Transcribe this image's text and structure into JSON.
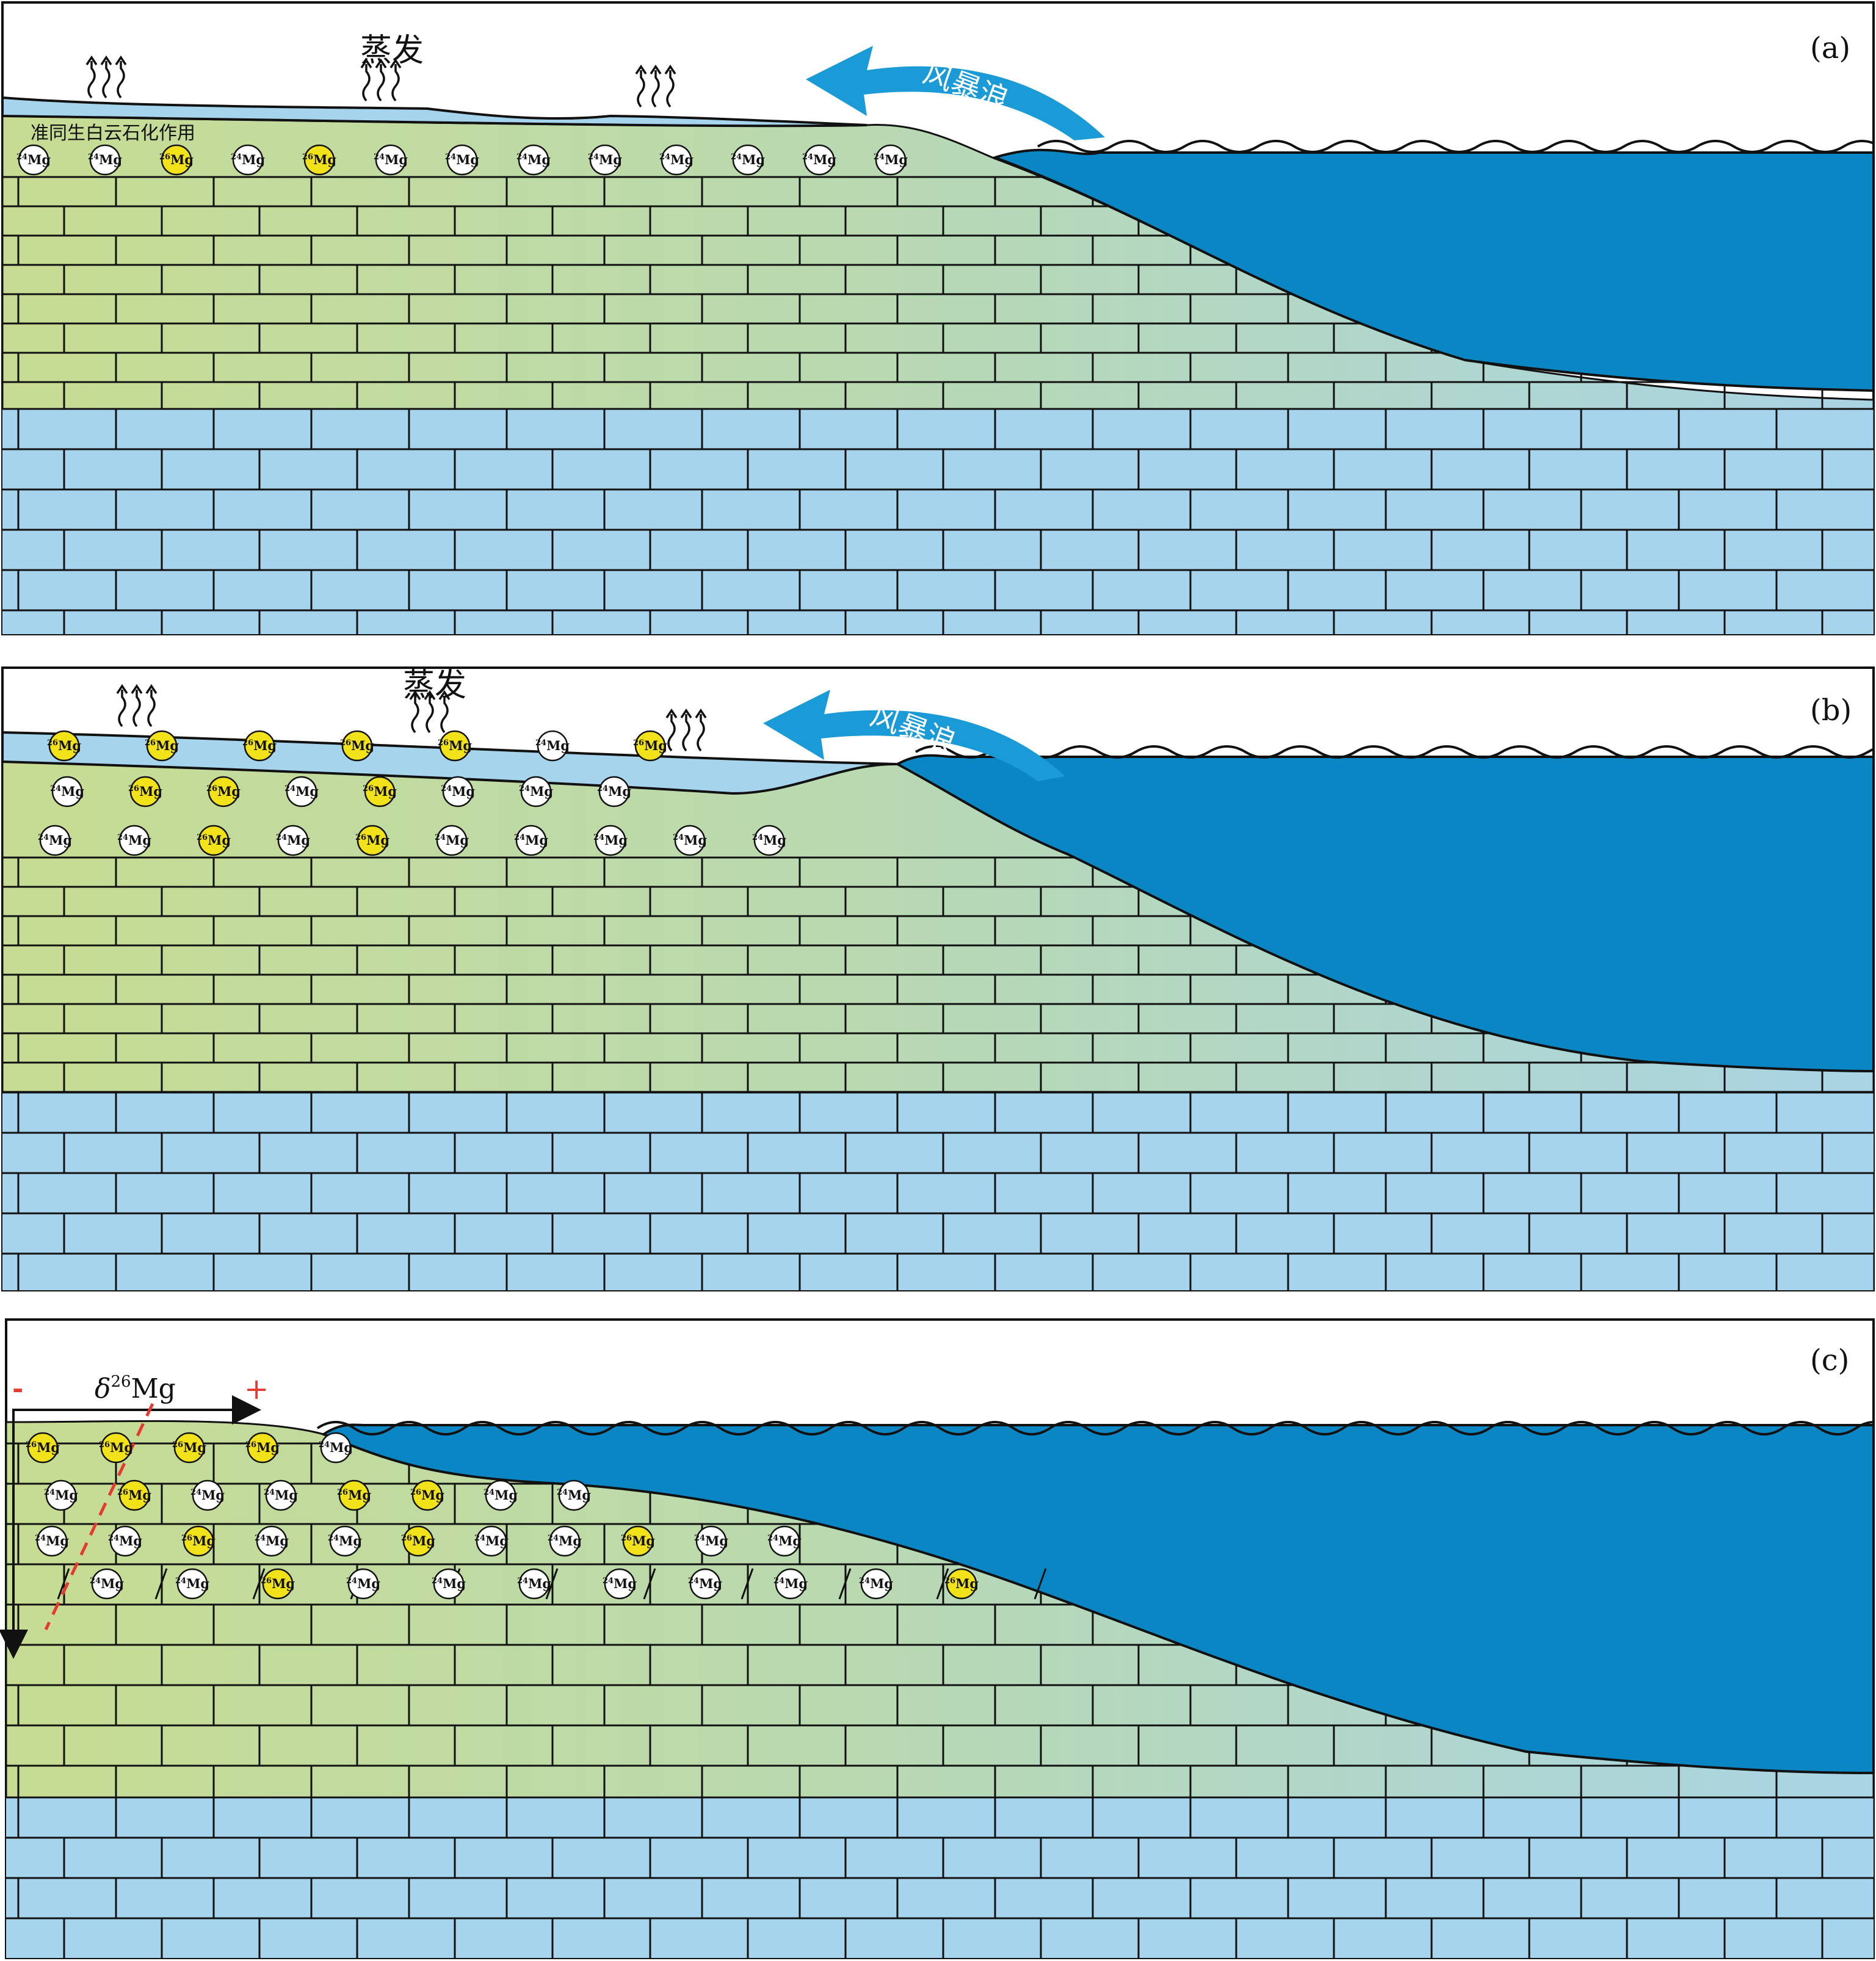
{
  "colors": {
    "limestone": "#a6d4ed",
    "dolomite_left": "#c7dc92",
    "dolomite_right": "#a9d4e4",
    "sea": "#0a86c4",
    "lagoon": "#a6d4ed",
    "storm_arrow": "#1a9ad6",
    "mg26": "#f2e21a",
    "mg24": "#ffffff",
    "trend_line": "#e43a2f"
  },
  "panels": [
    {
      "id": "a",
      "label": "(a)",
      "evaporation_label": "蒸发",
      "storm_label": "风暴浪",
      "process_label": "准同生白云石化作用",
      "rows": [
        [
          "24Mg",
          "24Mg",
          "26Mg",
          "24Mg",
          "26Mg",
          "24Mg",
          "24Mg",
          "24Mg",
          "24Mg",
          "24Mg",
          "24Mg",
          "24Mg",
          "24Mg"
        ]
      ]
    },
    {
      "id": "b",
      "label": "(b)",
      "evaporation_label": "蒸发",
      "storm_label": "风暴浪",
      "rows": [
        [
          "26Mg",
          "26Mg",
          "26Mg",
          "26Mg",
          "26Mg",
          "24Mg",
          "26Mg"
        ],
        [
          "24Mg",
          "26Mg",
          "26Mg",
          "24Mg",
          "26Mg",
          "24Mg",
          "24Mg",
          "24Mg"
        ],
        [
          "24Mg",
          "24Mg",
          "26Mg",
          "24Mg",
          "26Mg",
          "24Mg",
          "24Mg",
          "24Mg",
          "24Mg",
          "24Mg"
        ]
      ]
    },
    {
      "id": "c",
      "label": "(c)",
      "axis_label_prefix": "δ",
      "axis_label_sup": "26",
      "axis_label_suffix": "Mg",
      "axis_minus": "-",
      "axis_plus": "+",
      "rows": [
        [
          "26Mg",
          "26Mg",
          "26Mg",
          "26Mg",
          "24Mg"
        ],
        [
          "24Mg",
          "26Mg",
          "24Mg",
          "24Mg",
          "26Mg",
          "26Mg",
          "24Mg",
          "24Mg"
        ],
        [
          "24Mg",
          "24Mg",
          "26Mg",
          "24Mg",
          "24Mg",
          "26Mg",
          "24Mg",
          "24Mg",
          "26Mg",
          "24Mg",
          "24Mg"
        ],
        [
          "24Mg",
          "24Mg",
          "26Mg",
          "24Mg",
          "24Mg",
          "24Mg",
          "24Mg",
          "24Mg",
          "24Mg",
          "24Mg",
          "26Mg"
        ]
      ]
    }
  ]
}
